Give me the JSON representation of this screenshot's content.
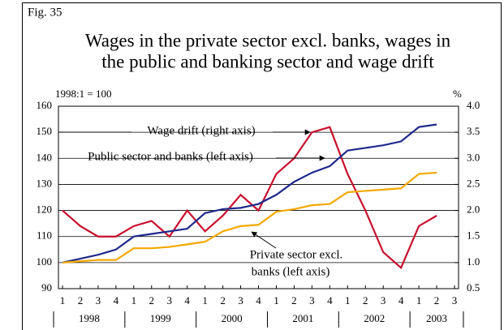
{
  "chart_data": {
    "type": "line",
    "figure_label": "Fig. 35",
    "title": [
      "Wages in the private sector excl. banks, wages in",
      "the public and banking sector and wage drift"
    ],
    "y_label": "1998:1 = 100",
    "y2_label": "%",
    "categories": [
      "1",
      "2",
      "3",
      "4",
      "1",
      "2",
      "3",
      "4",
      "1",
      "2",
      "3",
      "4",
      "1",
      "2",
      "3",
      "4",
      "1",
      "2",
      "3",
      "4",
      "1",
      "2",
      "3"
    ],
    "years": [
      "1998",
      "1999",
      "2000",
      "2001",
      "2002",
      "2003"
    ],
    "series": [
      {
        "color": "#c8102e",
        "axis": "y2",
        "values": [
          2.0,
          1.7,
          1.5,
          1.5,
          1.7,
          1.8,
          1.5,
          2.0,
          1.6,
          1.9,
          2.3,
          2.0,
          2.7,
          3.0,
          3.5,
          3.6,
          2.7,
          2.0,
          1.2,
          0.9,
          1.7,
          1.9,
          null
        ]
      },
      {
        "color": "#1f2a8c",
        "values": [
          100,
          101.5,
          103,
          105,
          110,
          111,
          112,
          113,
          119,
          120.5,
          121,
          122.5,
          126,
          131,
          134.5,
          137,
          143,
          144,
          145,
          146.5,
          152,
          153,
          null
        ]
      },
      {
        "color": "#f2a900",
        "values": [
          100,
          100.5,
          101,
          101,
          105.5,
          105.5,
          106,
          107,
          108,
          112,
          114,
          114.5,
          119.5,
          120.5,
          122,
          122.5,
          127,
          127.5,
          128,
          128.5,
          134,
          134.5,
          null
        ]
      }
    ],
    "annotations": [
      "Wage drift (right axis)",
      "Public sector and banks (left axis)",
      "Private sector excl.",
      "banks (left axis)"
    ],
    "ylim": [
      90,
      160
    ],
    "yticks": [
      90,
      100,
      110,
      120,
      130,
      140,
      150,
      160
    ],
    "y2lim": [
      0.5,
      4.0
    ],
    "y2ticks": [
      0.5,
      {
        "value": 1.0,
        "label": "1.0"
      },
      1.5,
      {
        "value": 2.0,
        "label": "2.0"
      },
      2.5,
      {
        "value": 3.0,
        "label": "3.0"
      },
      3.5,
      {
        "value": 4.0,
        "label": "4.0"
      }
    ],
    "grid": true
  }
}
